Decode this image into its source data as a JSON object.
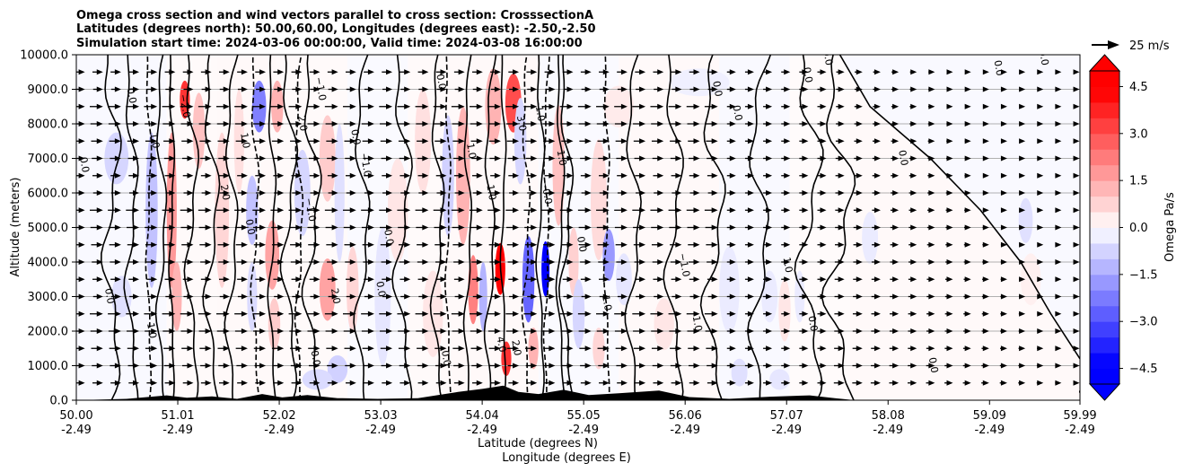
{
  "chart_data": {
    "type": "heatmap",
    "title_lines": [
      "Omega cross section and wind vectors parallel to cross section: CrosssectionA",
      "Latitudes (degrees north): 50.00,60.00, Longitudes (degrees east): -2.50,-2.50",
      "Simulation start time: 2024-03-06 00:00:00, Valid time: 2024-03-08 16:00:00"
    ],
    "xlabel_line1": "Latitude (degrees N)",
    "xlabel_line2": "Longitude (degrees E)",
    "ylabel": "Altitude (meters)",
    "xlim": [
      50.0,
      59.99
    ],
    "ylim": [
      0,
      10000
    ],
    "x_ticks": [
      {
        "lat": "50.00",
        "lon": "-2.49",
        "value": 50.0
      },
      {
        "lat": "51.01",
        "lon": "-2.49",
        "value": 51.01
      },
      {
        "lat": "52.02",
        "lon": "-2.49",
        "value": 52.02
      },
      {
        "lat": "53.03",
        "lon": "-2.49",
        "value": 53.03
      },
      {
        "lat": "54.04",
        "lon": "-2.49",
        "value": 54.04
      },
      {
        "lat": "55.05",
        "lon": "-2.49",
        "value": 55.05
      },
      {
        "lat": "56.06",
        "lon": "-2.49",
        "value": 56.06
      },
      {
        "lat": "57.07",
        "lon": "-2.49",
        "value": 57.07
      },
      {
        "lat": "58.08",
        "lon": "-2.49",
        "value": 58.08
      },
      {
        "lat": "59.09",
        "lon": "-2.49",
        "value": 59.09
      },
      {
        "lat": "59.99",
        "lon": "-2.49",
        "value": 59.99
      }
    ],
    "y_ticks": [
      {
        "label": "0.0",
        "value": 0
      },
      {
        "label": "1000.0",
        "value": 1000
      },
      {
        "label": "2000.0",
        "value": 2000
      },
      {
        "label": "3000.0",
        "value": 3000
      },
      {
        "label": "4000.0",
        "value": 4000
      },
      {
        "label": "5000.0",
        "value": 5000
      },
      {
        "label": "6000.0",
        "value": 6000
      },
      {
        "label": "7000.0",
        "value": 7000
      },
      {
        "label": "8000.0",
        "value": 8000
      },
      {
        "label": "9000.0",
        "value": 9000
      },
      {
        "label": "10000.0",
        "value": 10000
      }
    ],
    "grid": "horizontal",
    "colorbar": {
      "label": "Omega Pa/s",
      "range": [
        -5.0,
        5.0
      ],
      "levels": 20,
      "extend": "both",
      "ticks": [
        {
          "label": "4.5",
          "value": 4.5
        },
        {
          "label": "3.0",
          "value": 3.0
        },
        {
          "label": "1.5",
          "value": 1.5
        },
        {
          "label": "0.0",
          "value": 0.0
        },
        {
          "label": "−1.5",
          "value": -1.5
        },
        {
          "label": "−3.0",
          "value": -3.0
        },
        {
          "label": "−4.5",
          "value": -4.5
        }
      ],
      "colors": {
        "negative": "#0000ff",
        "zero": "#ffffff",
        "positive": "#ff0000"
      }
    },
    "quiver_key": {
      "label": "25 m/s",
      "speed": 25
    },
    "contour_levels": [
      "-3.0",
      "-2.0",
      "-1.0",
      "0.0",
      "1.0",
      "2.0",
      "3.0"
    ],
    "omega_cells": [
      {
        "lat": 50.4,
        "alt": 7000,
        "value": -0.8,
        "w_deg": 0.12,
        "h_m": 1500
      },
      {
        "lat": 50.45,
        "alt": 3000,
        "value": -0.6,
        "w_deg": 0.1,
        "h_m": 1200
      },
      {
        "lat": 50.75,
        "alt": 5500,
        "value": -1.2,
        "w_deg": 0.06,
        "h_m": 4500
      },
      {
        "lat": 50.95,
        "alt": 5500,
        "value": 2.0,
        "w_deg": 0.05,
        "h_m": 4500
      },
      {
        "lat": 51.08,
        "alt": 8700,
        "value": 4.0,
        "w_deg": 0.05,
        "h_m": 1100
      },
      {
        "lat": 51.0,
        "alt": 3000,
        "value": 1.5,
        "w_deg": 0.05,
        "h_m": 2000
      },
      {
        "lat": 51.22,
        "alt": 7800,
        "value": 1.2,
        "w_deg": 0.06,
        "h_m": 2200
      },
      {
        "lat": 51.45,
        "alt": 5500,
        "value": 0.8,
        "w_deg": 0.07,
        "h_m": 4500
      },
      {
        "lat": 51.62,
        "alt": 7500,
        "value": 0.6,
        "w_deg": 0.05,
        "h_m": 3000
      },
      {
        "lat": 51.75,
        "alt": 3000,
        "value": -0.7,
        "w_deg": 0.05,
        "h_m": 2000
      },
      {
        "lat": 51.82,
        "alt": 8500,
        "value": -2.5,
        "w_deg": 0.07,
        "h_m": 1500
      },
      {
        "lat": 51.75,
        "alt": 5500,
        "value": -1.2,
        "w_deg": 0.06,
        "h_m": 2000
      },
      {
        "lat": 52.0,
        "alt": 8500,
        "value": 1.5,
        "w_deg": 0.06,
        "h_m": 1500
      },
      {
        "lat": 51.95,
        "alt": 4200,
        "value": 1.8,
        "w_deg": 0.07,
        "h_m": 2000
      },
      {
        "lat": 51.97,
        "alt": 2200,
        "value": 1.0,
        "w_deg": 0.06,
        "h_m": 1500
      },
      {
        "lat": 52.25,
        "alt": 6000,
        "value": -0.8,
        "w_deg": 0.08,
        "h_m": 2500
      },
      {
        "lat": 52.5,
        "alt": 7000,
        "value": 1.0,
        "w_deg": 0.08,
        "h_m": 2500
      },
      {
        "lat": 52.5,
        "alt": 3200,
        "value": 1.8,
        "w_deg": 0.08,
        "h_m": 1800
      },
      {
        "lat": 52.62,
        "alt": 6000,
        "value": -0.6,
        "w_deg": 0.05,
        "h_m": 4000
      },
      {
        "lat": 52.75,
        "alt": 3200,
        "value": 0.8,
        "w_deg": 0.06,
        "h_m": 2500
      },
      {
        "lat": 52.6,
        "alt": 900,
        "value": -0.9,
        "w_deg": 0.1,
        "h_m": 800
      },
      {
        "lat": 52.4,
        "alt": 600,
        "value": -0.7,
        "w_deg": 0.15,
        "h_m": 600
      },
      {
        "lat": 53.05,
        "alt": 3000,
        "value": -0.5,
        "w_deg": 0.08,
        "h_m": 4000
      },
      {
        "lat": 53.2,
        "alt": 5500,
        "value": 0.5,
        "w_deg": 0.1,
        "h_m": 3000
      },
      {
        "lat": 53.45,
        "alt": 7500,
        "value": 0.6,
        "w_deg": 0.08,
        "h_m": 3000
      },
      {
        "lat": 53.55,
        "alt": 2500,
        "value": 0.5,
        "w_deg": 0.1,
        "h_m": 2500
      },
      {
        "lat": 53.7,
        "alt": 6500,
        "value": -0.9,
        "w_deg": 0.06,
        "h_m": 3500
      },
      {
        "lat": 53.85,
        "alt": 6500,
        "value": 1.5,
        "w_deg": 0.07,
        "h_m": 4000
      },
      {
        "lat": 53.95,
        "alt": 3200,
        "value": 2.5,
        "w_deg": 0.05,
        "h_m": 2000
      },
      {
        "lat": 54.05,
        "alt": 3000,
        "value": -1.5,
        "w_deg": 0.04,
        "h_m": 2000
      },
      {
        "lat": 54.22,
        "alt": 3800,
        "value": 5.5,
        "w_deg": 0.05,
        "h_m": 1500
      },
      {
        "lat": 54.28,
        "alt": 1200,
        "value": 4.0,
        "w_deg": 0.05,
        "h_m": 1000
      },
      {
        "lat": 54.35,
        "alt": 8600,
        "value": 3.5,
        "w_deg": 0.08,
        "h_m": 1700
      },
      {
        "lat": 54.15,
        "alt": 8500,
        "value": 1.5,
        "w_deg": 0.08,
        "h_m": 2200
      },
      {
        "lat": 54.5,
        "alt": 3500,
        "value": -3.0,
        "w_deg": 0.06,
        "h_m": 2500
      },
      {
        "lat": 54.42,
        "alt": 7500,
        "value": -0.8,
        "w_deg": 0.06,
        "h_m": 2500
      },
      {
        "lat": 54.67,
        "alt": 3800,
        "value": -6.0,
        "w_deg": 0.04,
        "h_m": 1600
      },
      {
        "lat": 54.55,
        "alt": 1500,
        "value": 1.5,
        "w_deg": 0.05,
        "h_m": 1200
      },
      {
        "lat": 54.8,
        "alt": 6800,
        "value": 1.2,
        "w_deg": 0.06,
        "h_m": 3500
      },
      {
        "lat": 54.95,
        "alt": 4000,
        "value": 0.9,
        "w_deg": 0.05,
        "h_m": 2000
      },
      {
        "lat": 55.0,
        "alt": 2500,
        "value": -0.8,
        "w_deg": 0.06,
        "h_m": 2000
      },
      {
        "lat": 55.2,
        "alt": 5800,
        "value": 0.7,
        "w_deg": 0.08,
        "h_m": 3500
      },
      {
        "lat": 55.3,
        "alt": 4200,
        "value": -2.0,
        "w_deg": 0.06,
        "h_m": 1500
      },
      {
        "lat": 55.45,
        "alt": 3500,
        "value": -0.5,
        "w_deg": 0.08,
        "h_m": 1500
      },
      {
        "lat": 55.2,
        "alt": 1500,
        "value": 0.8,
        "w_deg": 0.06,
        "h_m": 1200
      },
      {
        "lat": 55.85,
        "alt": 2200,
        "value": 0.5,
        "w_deg": 0.1,
        "h_m": 1500
      },
      {
        "lat": 55.4,
        "alt": 8500,
        "value": 0.4,
        "w_deg": 0.15,
        "h_m": 1200
      },
      {
        "lat": 56.2,
        "alt": 9200,
        "value": -0.3,
        "w_deg": 0.3,
        "h_m": 800
      },
      {
        "lat": 56.5,
        "alt": 3200,
        "value": -0.4,
        "w_deg": 0.1,
        "h_m": 2500
      },
      {
        "lat": 56.9,
        "alt": 3000,
        "value": -0.4,
        "w_deg": 0.08,
        "h_m": 1500
      },
      {
        "lat": 57.05,
        "alt": 2600,
        "value": 0.5,
        "w_deg": 0.06,
        "h_m": 1800
      },
      {
        "lat": 57.2,
        "alt": 3000,
        "value": -0.4,
        "w_deg": 0.05,
        "h_m": 1500
      },
      {
        "lat": 56.6,
        "alt": 800,
        "value": -0.6,
        "w_deg": 0.08,
        "h_m": 800
      },
      {
        "lat": 57.0,
        "alt": 600,
        "value": -0.5,
        "w_deg": 0.1,
        "h_m": 600
      },
      {
        "lat": 57.9,
        "alt": 4700,
        "value": -0.4,
        "w_deg": 0.08,
        "h_m": 1500
      },
      {
        "lat": 59.45,
        "alt": 5200,
        "value": -0.6,
        "w_deg": 0.07,
        "h_m": 1300
      },
      {
        "lat": 59.5,
        "alt": 3500,
        "value": 0.3,
        "w_deg": 0.1,
        "h_m": 1500
      }
    ],
    "zero_contours": [
      {
        "lat": 50.35,
        "amp": 0.07,
        "phase": 0.0
      },
      {
        "lat": 50.55,
        "amp": 0.05,
        "phase": 1.0
      },
      {
        "lat": 50.85,
        "amp": 0.04,
        "phase": 2.0
      },
      {
        "lat": 51.15,
        "amp": 0.05,
        "phase": 0.5
      },
      {
        "lat": 51.35,
        "amp": 0.06,
        "phase": 1.5
      },
      {
        "lat": 51.55,
        "amp": 0.05,
        "phase": 2.5
      },
      {
        "lat": 52.12,
        "amp": 0.06,
        "phase": 0.3
      },
      {
        "lat": 52.35,
        "amp": 0.07,
        "phase": 1.3
      },
      {
        "lat": 52.85,
        "amp": 0.06,
        "phase": 2.3
      },
      {
        "lat": 53.25,
        "amp": 0.07,
        "phase": 0.8
      },
      {
        "lat": 53.6,
        "amp": 0.05,
        "phase": 1.8
      },
      {
        "lat": 54.12,
        "amp": 0.04,
        "phase": 2.8
      },
      {
        "lat": 54.62,
        "amp": 0.03,
        "phase": 0.2
      },
      {
        "lat": 54.88,
        "amp": 0.05,
        "phase": 1.2
      },
      {
        "lat": 55.55,
        "amp": 0.06,
        "phase": 2.2
      },
      {
        "lat": 55.95,
        "amp": 0.07,
        "phase": 0.7
      },
      {
        "lat": 56.35,
        "amp": 0.09,
        "phase": 1.7
      },
      {
        "lat": 56.8,
        "amp": 0.08,
        "phase": 2.7
      },
      {
        "lat": 57.3,
        "amp": 0.1,
        "phase": 0.4
      },
      {
        "lat": 57.6,
        "amp": 0.12,
        "phase": 1.4
      }
    ],
    "neg_contours": [
      {
        "lat": 50.72,
        "amp": 0.02,
        "phase": 0.2
      },
      {
        "lat": 51.78,
        "amp": 0.03,
        "phase": 1.2
      },
      {
        "lat": 52.22,
        "amp": 0.03,
        "phase": 2.2
      },
      {
        "lat": 53.7,
        "amp": 0.02,
        "phase": 0.9
      },
      {
        "lat": 54.48,
        "amp": 0.03,
        "phase": 1.9
      },
      {
        "lat": 54.68,
        "amp": 0.02,
        "phase": 2.9
      },
      {
        "lat": 55.28,
        "amp": 0.02,
        "phase": 0.6
      }
    ],
    "pos_contours": [
      {
        "lat": 50.95,
        "amp": 0.02,
        "phase": 0.4
      },
      {
        "lat": 51.95,
        "amp": 0.03,
        "phase": 1.4
      },
      {
        "lat": 53.9,
        "amp": 0.03,
        "phase": 2.4
      },
      {
        "lat": 54.25,
        "amp": 0.02,
        "phase": 0.1
      },
      {
        "lat": 54.82,
        "amp": 0.03,
        "phase": 1.1
      }
    ],
    "diagonal_contour": {
      "points": [
        {
          "lat": 57.6,
          "alt": 10000
        },
        {
          "lat": 57.9,
          "alt": 8500
        },
        {
          "lat": 58.5,
          "alt": 7000
        },
        {
          "lat": 59.0,
          "alt": 5500
        },
        {
          "lat": 59.4,
          "alt": 4000
        },
        {
          "lat": 59.7,
          "alt": 2500
        },
        {
          "lat": 59.99,
          "alt": 1200
        }
      ]
    },
    "contour_labels": [
      {
        "text": "0.0",
        "lat": 50.05,
        "alt": 6800
      },
      {
        "text": "0.0",
        "lat": 50.3,
        "alt": 3000
      },
      {
        "text": "1.0",
        "lat": 50.72,
        "alt": 2000
      },
      {
        "text": "0.0",
        "lat": 50.52,
        "alt": 8800
      },
      {
        "text": "1.0",
        "lat": 50.75,
        "alt": 7500
      },
      {
        "text": "−2.0",
        "lat": 51.05,
        "alt": 8500
      },
      {
        "text": "1.0",
        "lat": 51.65,
        "alt": 7500
      },
      {
        "text": "2.0",
        "lat": 51.45,
        "alt": 6000
      },
      {
        "text": "0.0",
        "lat": 51.7,
        "alt": 5000
      },
      {
        "text": "−1.0",
        "lat": 52.4,
        "alt": 9000
      },
      {
        "text": "2.0",
        "lat": 52.22,
        "alt": 8000
      },
      {
        "text": "0.0",
        "lat": 52.75,
        "alt": 7600
      },
      {
        "text": "−1.0",
        "lat": 52.85,
        "alt": 6800
      },
      {
        "text": "−1.0",
        "lat": 52.3,
        "alt": 5500
      },
      {
        "text": "0.0",
        "lat": 53.08,
        "alt": 4700
      },
      {
        "text": "2.0",
        "lat": 52.55,
        "alt": 3000
      },
      {
        "text": "0.0",
        "lat": 52.35,
        "alt": 1200
      },
      {
        "text": "0.0",
        "lat": 53.0,
        "alt": 3200
      },
      {
        "text": "0.0",
        "lat": 53.6,
        "alt": 9200
      },
      {
        "text": "1.0",
        "lat": 53.9,
        "alt": 7200
      },
      {
        "text": "1.0",
        "lat": 54.1,
        "alt": 6000
      },
      {
        "text": "−1.0",
        "lat": 54.58,
        "alt": 8400
      },
      {
        "text": "3.0",
        "lat": 54.4,
        "alt": 8000
      },
      {
        "text": "1.0",
        "lat": 54.8,
        "alt": 7000
      },
      {
        "text": "−0.0",
        "lat": 54.65,
        "alt": 6000
      },
      {
        "text": "0.0",
        "lat": 55.0,
        "alt": 4500
      },
      {
        "text": "1.0",
        "lat": 55.25,
        "alt": 2800
      },
      {
        "text": "−1.0",
        "lat": 56.02,
        "alt": 3900
      },
      {
        "text": "1.0",
        "lat": 56.15,
        "alt": 2200
      },
      {
        "text": "0.0",
        "lat": 56.35,
        "alt": 9000
      },
      {
        "text": "0.0",
        "lat": 56.55,
        "alt": 8300
      },
      {
        "text": "0.0",
        "lat": 57.25,
        "alt": 9400
      },
      {
        "text": "0.0",
        "lat": 57.45,
        "alt": 9900
      },
      {
        "text": "0.0",
        "lat": 58.2,
        "alt": 7000
      },
      {
        "text": "0.0",
        "lat": 59.15,
        "alt": 9600
      },
      {
        "text": "0.0",
        "lat": 59.6,
        "alt": 9900
      },
      {
        "text": "0.0",
        "lat": 58.5,
        "alt": 1000
      },
      {
        "text": "0.0",
        "lat": 59.99,
        "alt": 100
      },
      {
        "text": "1.0",
        "lat": 57.05,
        "alt": 3900
      },
      {
        "text": "0.0",
        "lat": 57.3,
        "alt": 2200
      },
      {
        "text": "2.0",
        "lat": 54.35,
        "alt": 1500
      },
      {
        "text": "4.0",
        "lat": 54.2,
        "alt": 1600
      },
      {
        "text": "0.0",
        "lat": 53.65,
        "alt": 1200
      }
    ],
    "terrain": [
      {
        "lat": 50.0,
        "alt": 0
      },
      {
        "lat": 50.5,
        "alt": 40
      },
      {
        "lat": 50.9,
        "alt": 140
      },
      {
        "lat": 51.1,
        "alt": 70
      },
      {
        "lat": 51.35,
        "alt": 110
      },
      {
        "lat": 51.6,
        "alt": 40
      },
      {
        "lat": 51.85,
        "alt": 180
      },
      {
        "lat": 52.05,
        "alt": 80
      },
      {
        "lat": 52.3,
        "alt": 150
      },
      {
        "lat": 52.6,
        "alt": 60
      },
      {
        "lat": 53.0,
        "alt": 40
      },
      {
        "lat": 53.4,
        "alt": 60
      },
      {
        "lat": 53.8,
        "alt": 240
      },
      {
        "lat": 54.05,
        "alt": 330
      },
      {
        "lat": 54.25,
        "alt": 420
      },
      {
        "lat": 54.4,
        "alt": 240
      },
      {
        "lat": 54.6,
        "alt": 180
      },
      {
        "lat": 54.85,
        "alt": 300
      },
      {
        "lat": 55.1,
        "alt": 150
      },
      {
        "lat": 55.4,
        "alt": 200
      },
      {
        "lat": 55.8,
        "alt": 280
      },
      {
        "lat": 56.1,
        "alt": 90
      },
      {
        "lat": 56.5,
        "alt": 40
      },
      {
        "lat": 56.9,
        "alt": 100
      },
      {
        "lat": 57.3,
        "alt": 140
      },
      {
        "lat": 57.55,
        "alt": 60
      },
      {
        "lat": 57.75,
        "alt": 0
      },
      {
        "lat": 59.99,
        "alt": 0
      }
    ]
  }
}
